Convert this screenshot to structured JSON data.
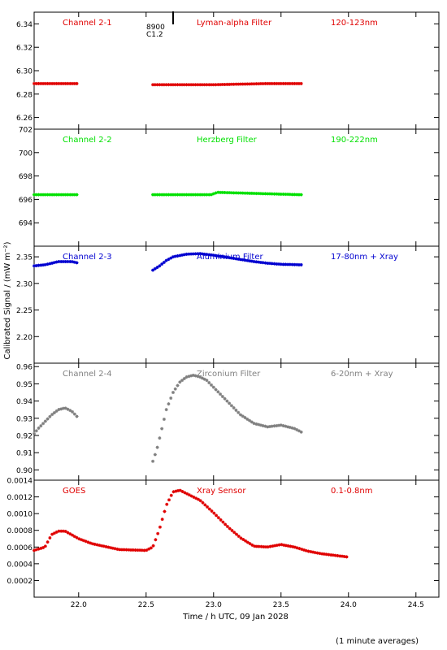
{
  "figure": {
    "ylabel": "Calibrated Signal / (mW m⁻²)",
    "xlabel": "Time / h UTC, 09 Jan 2028",
    "footnote": "(1 minute averages)",
    "event_marker": {
      "time": 22.7,
      "line1": "8900",
      "line2": "C1.2"
    },
    "x_ticks": [
      "22.0",
      "22.5",
      "23.0",
      "23.5",
      "24.0",
      "24.5"
    ]
  },
  "chart_data": [
    {
      "type": "scatter",
      "channel": "Channel 2-1",
      "filter": "Lyman-alpha Filter",
      "band": "120-123nm",
      "color": "#e00000",
      "ylim": [
        6.25,
        6.35
      ],
      "yticks": [
        "6.26",
        "6.28",
        "6.30",
        "6.32",
        "6.34"
      ],
      "segments": [
        {
          "x": [
            21.67,
            22.0
          ],
          "y": [
            6.289,
            6.289
          ]
        },
        {
          "x": [
            22.55,
            23.0,
            23.4,
            23.65
          ],
          "y": [
            6.288,
            6.288,
            6.289,
            6.289
          ]
        }
      ]
    },
    {
      "type": "scatter",
      "channel": "Channel 2-2",
      "filter": "Herzberg Filter",
      "band": "190-222nm",
      "color": "#00e000",
      "ylim": [
        692,
        702
      ],
      "yticks": [
        "694",
        "696",
        "698",
        "700",
        "702"
      ],
      "segments": [
        {
          "x": [
            21.67,
            22.0
          ],
          "y": [
            696.4,
            696.4
          ]
        },
        {
          "x": [
            22.55,
            22.98,
            23.03,
            23.65
          ],
          "y": [
            696.4,
            696.4,
            696.6,
            696.4
          ]
        }
      ]
    },
    {
      "type": "scatter",
      "channel": "Channel 2-3",
      "filter": "Aluminium Filter",
      "band": "17-80nm + Xray",
      "color": "#0000d0",
      "ylim": [
        2.15,
        2.37
      ],
      "yticks": [
        "2.20",
        "2.25",
        "2.30",
        "2.35"
      ],
      "segments": [
        {
          "x": [
            21.67,
            21.75,
            21.85,
            21.95,
            22.0
          ],
          "y": [
            2.333,
            2.335,
            2.341,
            2.341,
            2.338
          ]
        },
        {
          "x": [
            22.55,
            22.6,
            22.65,
            22.7,
            22.8,
            22.9,
            23.0,
            23.1,
            23.2,
            23.3,
            23.4,
            23.5,
            23.65
          ],
          "y": [
            2.325,
            2.333,
            2.343,
            2.35,
            2.355,
            2.356,
            2.353,
            2.349,
            2.345,
            2.341,
            2.338,
            2.336,
            2.335
          ]
        }
      ]
    },
    {
      "type": "scatter",
      "channel": "Channel 2-4",
      "filter": "Zirconium Filter",
      "band": "6-20nm + Xray",
      "color": "#808080",
      "ylim": [
        0.894,
        0.962
      ],
      "yticks": [
        "0.90",
        "0.91",
        "0.92",
        "0.93",
        "0.94",
        "0.95",
        "0.96"
      ],
      "segments": [
        {
          "x": [
            21.67,
            21.7,
            21.75,
            21.8,
            21.85,
            21.9,
            21.95,
            22.0
          ],
          "y": [
            0.921,
            0.924,
            0.928,
            0.932,
            0.935,
            0.936,
            0.934,
            0.93
          ]
        },
        {
          "x": [
            22.55,
            22.58,
            22.62,
            22.65,
            22.7,
            22.75,
            22.8,
            22.85,
            22.9,
            22.95,
            23.0,
            23.1,
            23.2,
            23.3,
            23.4,
            23.5,
            23.6,
            23.65
          ],
          "y": [
            0.905,
            0.912,
            0.925,
            0.935,
            0.945,
            0.951,
            0.954,
            0.955,
            0.954,
            0.952,
            0.948,
            0.94,
            0.932,
            0.927,
            0.925,
            0.926,
            0.924,
            0.922
          ]
        }
      ]
    },
    {
      "type": "scatter",
      "channel": "GOES",
      "filter": "Xray Sensor",
      "band": "0.1-0.8nm",
      "color": "#e00000",
      "ylim": [
        0.0,
        0.0014
      ],
      "yticks": [
        "0.0002",
        "0.0004",
        "0.0006",
        "0.0008",
        "0.0010",
        "0.0012",
        "0.0014"
      ],
      "segments": [
        {
          "x": [
            21.67,
            21.75,
            21.8,
            21.85,
            21.9,
            22.0,
            22.1,
            22.3,
            22.5,
            22.55,
            22.6,
            22.65,
            22.7,
            22.75,
            22.8,
            22.9,
            23.0,
            23.1,
            23.2,
            23.3,
            23.4,
            23.5,
            23.6,
            23.7,
            23.8,
            23.9,
            24.0
          ],
          "y": [
            0.00056,
            0.0006,
            0.00075,
            0.00079,
            0.00079,
            0.0007,
            0.00064,
            0.00057,
            0.00056,
            0.0006,
            0.00082,
            0.0011,
            0.00126,
            0.00128,
            0.00124,
            0.00116,
            0.00101,
            0.00085,
            0.00071,
            0.00061,
            0.0006,
            0.00063,
            0.0006,
            0.00055,
            0.00052,
            0.0005,
            0.00048
          ]
        }
      ]
    }
  ]
}
